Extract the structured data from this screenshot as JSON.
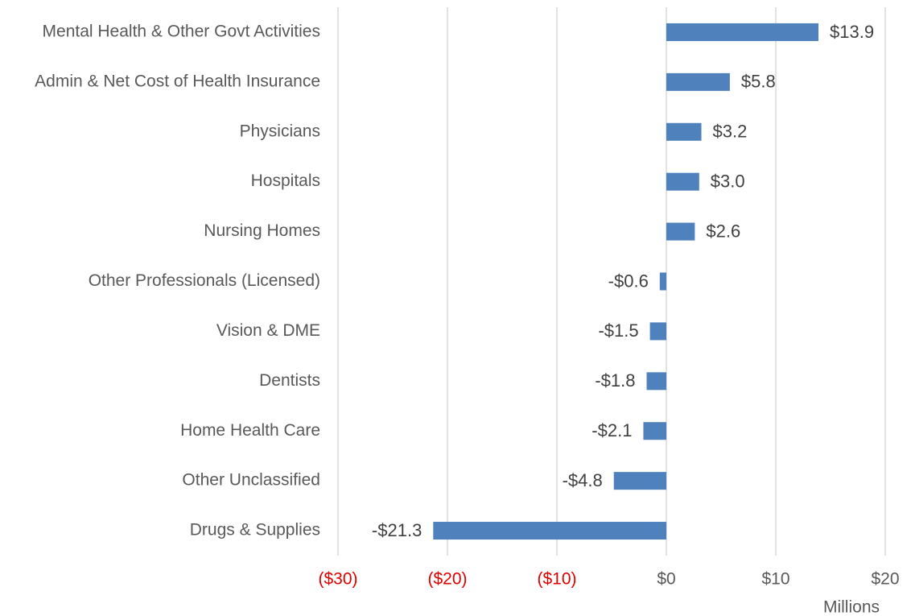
{
  "chart_data": {
    "type": "bar",
    "orientation": "horizontal",
    "categories": [
      "Mental Health & Other Govt Activities",
      "Admin & Net Cost of Health Insurance",
      "Physicians",
      "Hospitals",
      "Nursing Homes",
      "Other Professionals (Licensed)",
      "Vision & DME",
      "Dentists",
      "Home Health Care",
      "Other Unclassified",
      "Drugs & Supplies"
    ],
    "values": [
      13.9,
      5.8,
      3.2,
      3.0,
      2.6,
      -0.6,
      -1.5,
      -1.8,
      -2.1,
      -4.8,
      -21.3
    ],
    "value_labels": [
      "$13.9",
      "$5.8",
      "$3.2",
      "$3.0",
      "$2.6",
      "-$0.6",
      "-$1.5",
      "-$1.8",
      "-$2.1",
      "-$4.8",
      "-$21.3"
    ],
    "color": "#4f81bd",
    "xlim": [
      -30,
      20
    ],
    "xticks": [
      {
        "value": -30,
        "label": "($30)"
      },
      {
        "value": -20,
        "label": "($20)"
      },
      {
        "value": -10,
        "label": "($10)"
      },
      {
        "value": 0,
        "label": "$0"
      },
      {
        "value": 10,
        "label": "$10"
      },
      {
        "value": 20,
        "label": "$20"
      }
    ],
    "negative_tick_color": "#e00000",
    "xlabel": "Millions",
    "grid": true
  }
}
